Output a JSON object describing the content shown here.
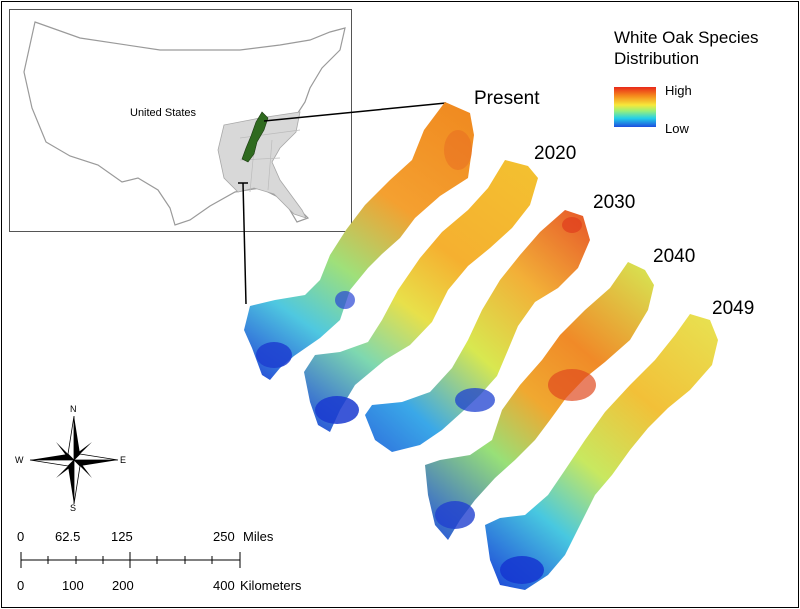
{
  "inset": {
    "label": "United States"
  },
  "map": {
    "years": [
      "Present",
      "2020",
      "2030",
      "2040",
      "2049"
    ]
  },
  "legend": {
    "title_line1": "White Oak Species",
    "title_line2": "Distribution",
    "high": "High",
    "low": "Low",
    "colors": [
      "#e8281a",
      "#f58a1c",
      "#f7e83a",
      "#98f07a",
      "#24d0e8",
      "#1d4ee0"
    ]
  },
  "compass": {
    "n": "N",
    "s": "S",
    "e": "E",
    "w": "W"
  },
  "scalebar": {
    "miles_ticks": [
      "0",
      "62.5",
      "125",
      "250"
    ],
    "miles_unit": "Miles",
    "km_ticks": [
      "0",
      "100",
      "200",
      "400"
    ],
    "km_unit": "Kilometers"
  }
}
